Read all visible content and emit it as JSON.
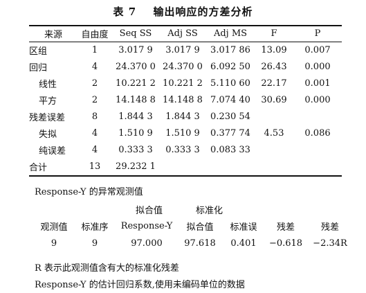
{
  "caption": {
    "number": "表 7",
    "title": "输出响应的方差分析"
  },
  "anova": {
    "headers": [
      "来源",
      "自由度",
      "Seq SS",
      "Adj SS",
      "Adj MS",
      "F",
      "P"
    ],
    "rows": [
      {
        "source": "区组",
        "df": "1",
        "seq_ss": "3.017 9",
        "adj_ss": "3.017 9",
        "adj_ms": "3.017 86",
        "f": "13.09",
        "p": "0.007"
      },
      {
        "source": "回归",
        "df": "4",
        "seq_ss": "24.370 0",
        "adj_ss": "24.370 0",
        "adj_ms": "6.092 50",
        "f": "26.43",
        "p": "0.000"
      },
      {
        "source": "线性",
        "df": "2",
        "seq_ss": "10.221 2",
        "adj_ss": "10.221 2",
        "adj_ms": "5.110 60",
        "f": "22.17",
        "p": "0.001"
      },
      {
        "source": "平方",
        "df": "2",
        "seq_ss": "14.148 8",
        "adj_ss": "14.148 8",
        "adj_ms": "7.074 40",
        "f": "30.69",
        "p": "0.000"
      },
      {
        "source": "残差误差",
        "df": "8",
        "seq_ss": "1.844 3",
        "adj_ss": "1.844 3",
        "adj_ms": "0.230 54",
        "f": "",
        "p": ""
      },
      {
        "source": "失拟",
        "df": "4",
        "seq_ss": "1.510 9",
        "adj_ss": "1.510 9",
        "adj_ms": "0.377 74",
        "f": "4.53",
        "p": "0.086"
      },
      {
        "source": "纯误差",
        "df": "4",
        "seq_ss": "0.333 3",
        "adj_ss": "0.333 3",
        "adj_ms": "0.083 33",
        "f": "",
        "p": ""
      },
      {
        "source": "合计",
        "df": "13",
        "seq_ss": "29.232 1",
        "adj_ss": "",
        "adj_ms": "",
        "f": "",
        "p": ""
      }
    ]
  },
  "unusual": {
    "heading": "Response-Y 的异常观测值",
    "top_labels": [
      "拟合值",
      "标准化"
    ],
    "headers": [
      "观测值",
      "标准序",
      "Response-Y",
      "拟合值",
      "标准误",
      "残差",
      "残差"
    ],
    "row": [
      "9",
      "9",
      "97.000",
      "97.618",
      "0.401",
      "−0.618",
      "−2.34R"
    ],
    "note": "R 表示此观测值含有大的标准化残差"
  },
  "footer": "Response-Y 的估计回归系数,使用未编码单位的数据"
}
